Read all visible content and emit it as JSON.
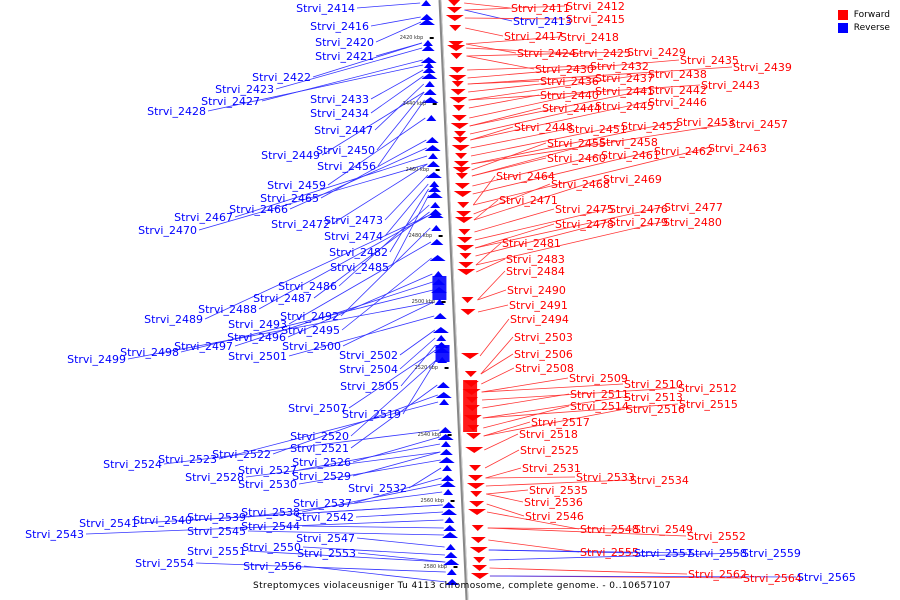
{
  "legend": {
    "items": [
      {
        "label": "Forward",
        "color": "#ff0000"
      },
      {
        "label": "Reverse",
        "color": "#0000ff"
      }
    ]
  },
  "caption": "Streptomyces violaceusniger Tu 4113 chromosome, complete genome. - 0..10657107",
  "colors": {
    "forward": "#ff0000",
    "reverse": "#0000ff",
    "forward_line": "#ff3333",
    "reverse_line": "#3333ff",
    "axis": "#888888"
  },
  "ticks": [
    {
      "label": "2420 kbp"
    },
    {
      "label": "2440 kbp"
    },
    {
      "label": "2460 kbp"
    },
    {
      "label": "2480 kbp"
    },
    {
      "label": "2500 kbp"
    },
    {
      "label": "2520 kbp"
    },
    {
      "label": "2540 kbp"
    },
    {
      "label": "2560 kbp"
    },
    {
      "label": "2580 kbp"
    }
  ],
  "reverse_labels": [
    "Strvi_2414",
    "Strvi_2416",
    "Strvi_2420",
    "Strvi_2421",
    "Strvi_2422",
    "Strvi_2423",
    "Strvi_2427",
    "Strvi_2428",
    "Strvi_2433",
    "Strvi_2434",
    "Strvi_2447",
    "Strvi_2449",
    "Strvi_2450",
    "Strvi_2456",
    "Strvi_2459",
    "Strvi_2465",
    "Strvi_2466",
    "Strvi_2467",
    "Strvi_2470",
    "Strvi_2472",
    "Strvi_2473",
    "Strvi_2474",
    "Strvi_2482",
    "Strvi_2485",
    "Strvi_2486",
    "Strvi_2487",
    "Strvi_2488",
    "Strvi_2489",
    "Strvi_2492",
    "Strvi_2493",
    "Strvi_2495",
    "Strvi_2496",
    "Strvi_2497",
    "Strvi_2498",
    "Strvi_2499",
    "Strvi_2500",
    "Strvi_2501",
    "Strvi_2502",
    "Strvi_2504",
    "Strvi_2505",
    "Strvi_2507",
    "Strvi_2519",
    "Strvi_2520",
    "Strvi_2521",
    "Strvi_2522",
    "Strvi_2523",
    "Strvi_2524",
    "Strvi_2526",
    "Strvi_2527",
    "Strvi_2528",
    "Strvi_2529",
    "Strvi_2530",
    "Strvi_2532",
    "Strvi_2537",
    "Strvi_2538",
    "Strvi_2539",
    "Strvi_2540",
    "Strvi_2541",
    "Strvi_2542",
    "Strvi_2543",
    "Strvi_2544",
    "Strvi_2545",
    "Strvi_2547",
    "Strvi_2550",
    "Strvi_2551",
    "Strvi_2553",
    "Strvi_2554",
    "Strvi_2556"
  ],
  "forward_labels": [
    "Strvi_2411",
    "Strvi_2412",
    "Strvi_2413",
    "Strvi_2415",
    "Strvi_2417",
    "Strvi_2418",
    "Strvi_2424",
    "Strvi_2425",
    "Strvi_2429",
    "Strvi_2430",
    "Strvi_2432",
    "Strvi_2435",
    "Strvi_2439",
    "Strvi_2436",
    "Strvi_2437",
    "Strvi_2438",
    "Strvi_2443",
    "Strvi_2440",
    "Strvi_2441",
    "Strvi_2442",
    "Strvi_2444",
    "Strvi_2445",
    "Strvi_2446",
    "Strvi_2448",
    "Strvi_2451",
    "Strvi_2452",
    "Strvi_2453",
    "Strvi_2457",
    "Strvi_2455",
    "Strvi_2458",
    "Strvi_2460",
    "Strvi_2461",
    "Strvi_2462",
    "Strvi_2463",
    "Strvi_2464",
    "Strvi_2468",
    "Strvi_2469",
    "Strvi_2471",
    "Strvi_2475",
    "Strvi_2476",
    "Strvi_2477",
    "Strvi_2478",
    "Strvi_2479",
    "Strvi_2480",
    "Strvi_2481",
    "Strvi_2483",
    "Strvi_2484",
    "Strvi_2490",
    "Strvi_2491",
    "Strvi_2494",
    "Strvi_2503",
    "Strvi_2506",
    "Strvi_2508",
    "Strvi_2509",
    "Strvi_2510",
    "Strvi_2512",
    "Strvi_2511",
    "Strvi_2513",
    "Strvi_2515",
    "Strvi_2514",
    "Strvi_2516",
    "Strvi_2517",
    "Strvi_2518",
    "Strvi_2525",
    "Strvi_2531",
    "Strvi_2533",
    "Strvi_2534",
    "Strvi_2535",
    "Strvi_2536",
    "Strvi_2546",
    "Strvi_2548",
    "Strvi_2549",
    "Strvi_2552",
    "Strvi_2555",
    "Strvi_2557",
    "Strvi_2558",
    "Strvi_2559",
    "Strvi_2562",
    "Strvi_2564",
    "Strvi_2565"
  ],
  "forward_label_strand_overrides": {
    "Strvi_2413": "reverse",
    "Strvi_2557": "reverse",
    "Strvi_2558": "reverse",
    "Strvi_2559": "reverse",
    "Strvi_2565": "reverse"
  }
}
